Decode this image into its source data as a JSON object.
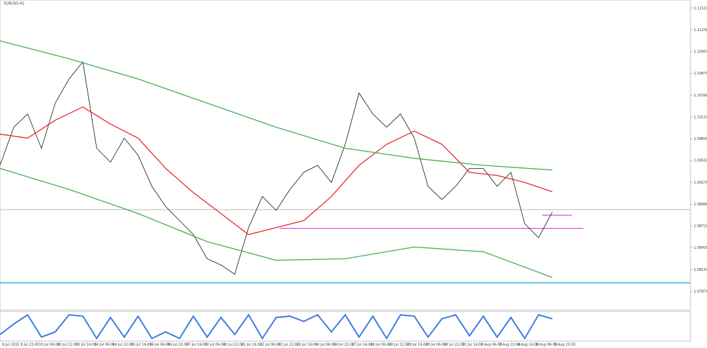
{
  "chart_data": {
    "type": "line",
    "title": "EURUSD,H1",
    "ylim": [
      1.0763,
      1.1157
    ],
    "yticks": [
      {
        "value": 1.1151,
        "label": "1.11510"
      },
      {
        "value": 1.1123,
        "label": "1.11230"
      },
      {
        "value": 1.1095,
        "label": "1.10950"
      },
      {
        "value": 1.1067,
        "label": "1.10670"
      },
      {
        "value": 1.1039,
        "label": "1.10390"
      },
      {
        "value": 1.1011,
        "label": "1.10110"
      },
      {
        "value": 1.0983,
        "label": "1.09830"
      },
      {
        "value": 1.0955,
        "label": "1.09550"
      },
      {
        "value": 1.0927,
        "label": "1.09270"
      },
      {
        "value": 1.0899,
        "label": "1.08990"
      },
      {
        "value": 1.0871,
        "label": "1.08710"
      },
      {
        "value": 1.0843,
        "label": "1.08430"
      },
      {
        "value": 1.0815,
        "label": "1.08150"
      },
      {
        "value": 1.0787,
        "label": "1.07870"
      }
    ],
    "xlabels": [
      "8 Jul 2015",
      "9 Jul 22:00",
      "10 Jul 06:00",
      "10 Jul 22:00",
      "13 Jul 14:00",
      "14 Jul 06:00",
      "14 Jul 22:00",
      "15 Jul 14:00",
      "16 Jul 06:00",
      "16 Jul 22:00",
      "17 Jul 14:00",
      "20 Jul 06:00",
      "20 Jul 22:00",
      "21 Jul 14:00",
      "22 Jul 06:00",
      "22 Jul 22:00",
      "23 Jul 14:00",
      "24 Jul 06:00",
      "24 Jul 22:00",
      "27 Jul 14:00",
      "28 Jul 06:00",
      "28 Jul 22:00",
      "29 Jul 14:00",
      "30 Jul 06:00",
      "30 Jul 22:00",
      "31 Jul 14:00",
      "3 Aug 06:00",
      "3 Aug 22:00",
      "4 Aug 14:00",
      "5 Aug 06:00",
      "5 Aug 22:00"
    ],
    "series": [
      {
        "color": "#111111",
        "values": [
          1.0949,
          1.0998,
          1.1015,
          1.0971,
          1.1029,
          1.106,
          1.1082,
          1.0971,
          1.0953,
          1.0984,
          1.0962,
          1.0922,
          1.0896,
          1.0878,
          1.086,
          1.0829,
          1.0821,
          1.0809,
          1.0869,
          1.0909,
          1.0891,
          1.0918,
          1.094,
          1.0949,
          1.0927,
          1.0976,
          1.1042,
          1.1015,
          1.0998,
          1.1015,
          1.0984,
          1.0922,
          1.0905,
          1.0922,
          1.0945,
          1.0945,
          1.0922,
          1.094,
          1.0874,
          1.0856,
          1.0889
        ]
      },
      {
        "color": "#e8262a",
        "values": [
          1.0989,
          1.0984,
          1.1007,
          1.1024,
          1.1002,
          1.0984,
          1.0945,
          1.0914,
          1.0887,
          1.086,
          1.0869,
          1.0878,
          1.0909,
          1.0949,
          1.0976,
          1.0993,
          1.0976,
          1.094,
          1.0936,
          1.0927,
          1.0915
        ]
      },
      {
        "color": "#3fae4f",
        "values": [
          1.1109,
          1.1086,
          1.106,
          1.1029,
          1.0998,
          1.0971,
          1.0958,
          1.0949,
          1.0943
        ]
      },
      {
        "color": "#3fae4f",
        "values": [
          1.0945,
          1.0918,
          1.0887,
          1.0851,
          1.0827,
          1.0829,
          1.0844,
          1.0838,
          1.0805
        ]
      }
    ],
    "levels": [
      {
        "value": 1.0798,
        "color": "#1fa8e0"
      },
      {
        "value": 1.0868,
        "color": "#e020e0"
      },
      {
        "value": 1.0885,
        "color": "#e020e0"
      },
      {
        "value": 1.0892,
        "color": "#bbbbbb"
      }
    ],
    "oscillator": {
      "color": "#3a7be0",
      "ylim": [
        0,
        100
      ],
      "values": [
        20,
        60,
        95,
        10,
        30,
        95,
        90,
        5,
        85,
        10,
        90,
        5,
        30,
        5,
        90,
        10,
        85,
        20,
        95,
        5,
        85,
        90,
        70,
        95,
        30,
        95,
        10,
        90,
        5,
        95,
        90,
        10,
        80,
        95,
        15,
        90,
        10,
        85,
        5,
        95,
        80
      ]
    }
  }
}
